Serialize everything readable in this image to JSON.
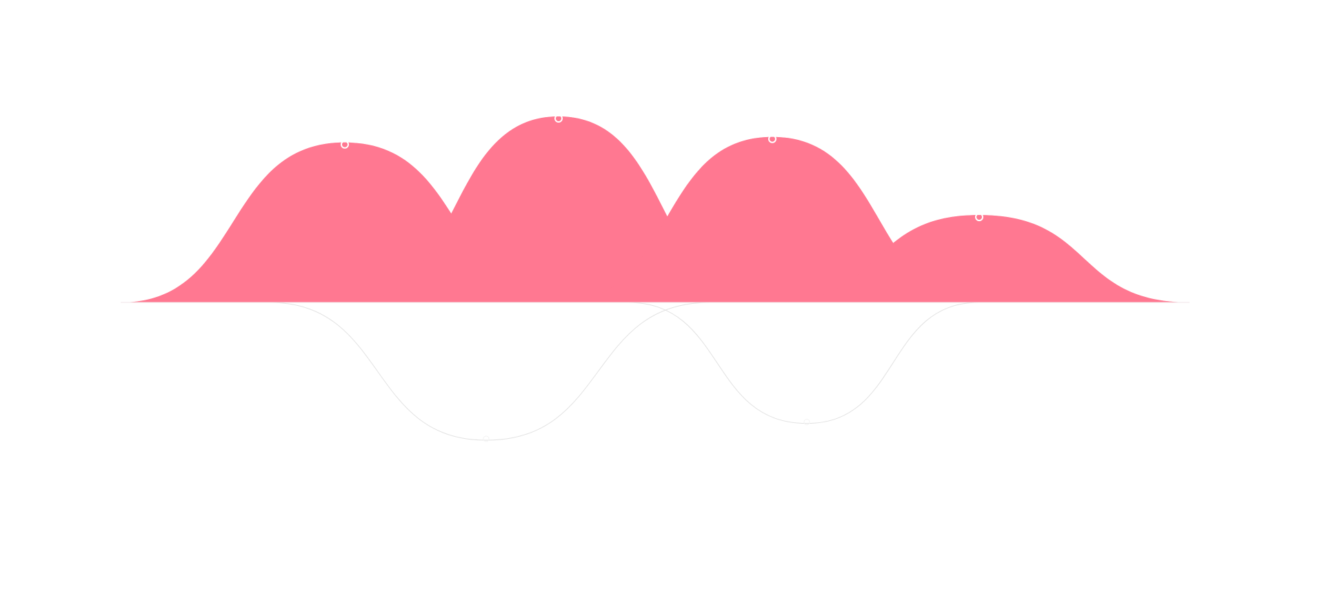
{
  "chart_data": {
    "type": "area",
    "title": "",
    "xlabel": "",
    "ylabel": "",
    "grid": false,
    "legend": "none",
    "baseline": 0,
    "ylim": [
      -100,
      100
    ],
    "colors": {
      "positive_fill": "#ff7891",
      "overlap_fill": "#ff3f62",
      "negative_stroke": "#e2e2e2",
      "marker_stroke": "#ffffff"
    },
    "peaks": [
      {
        "center": 500,
        "value": 86,
        "start": 175,
        "end": 825
      },
      {
        "center": 810,
        "value": 100,
        "start": 505,
        "end": 1115
      },
      {
        "center": 1120,
        "value": 89,
        "start": 810,
        "end": 1430
      },
      {
        "center": 1420,
        "value": 47,
        "start": 1120,
        "end": 1725
      },
      {
        "center": 705,
        "value": -82,
        "start": 390,
        "end": 1030
      },
      {
        "center": 1170,
        "value": -72,
        "start": 910,
        "end": 1420
      }
    ]
  }
}
